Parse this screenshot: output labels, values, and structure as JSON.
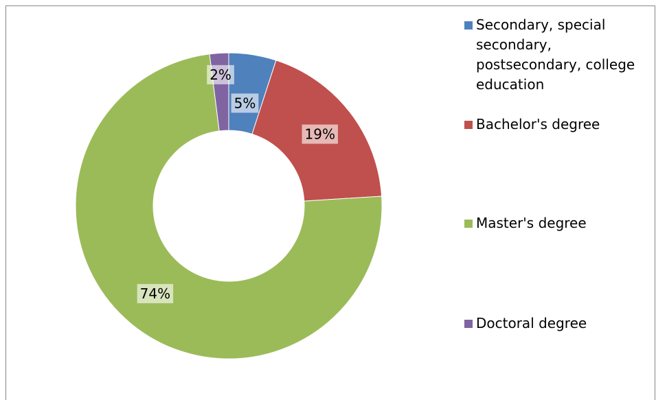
{
  "chart_data": {
    "type": "donut",
    "categories": [
      "Secondary, special secondary, postsecondary, college education",
      "Bachelor's degree",
      "Master's degree",
      "Doctoral degree"
    ],
    "values": [
      5,
      19,
      74,
      2
    ],
    "value_labels": [
      "5%",
      "19%",
      "74%",
      "2%"
    ],
    "colors": [
      "#4f81bd",
      "#c0504d",
      "#9bbb59",
      "#8064a2"
    ],
    "legend": "right"
  }
}
